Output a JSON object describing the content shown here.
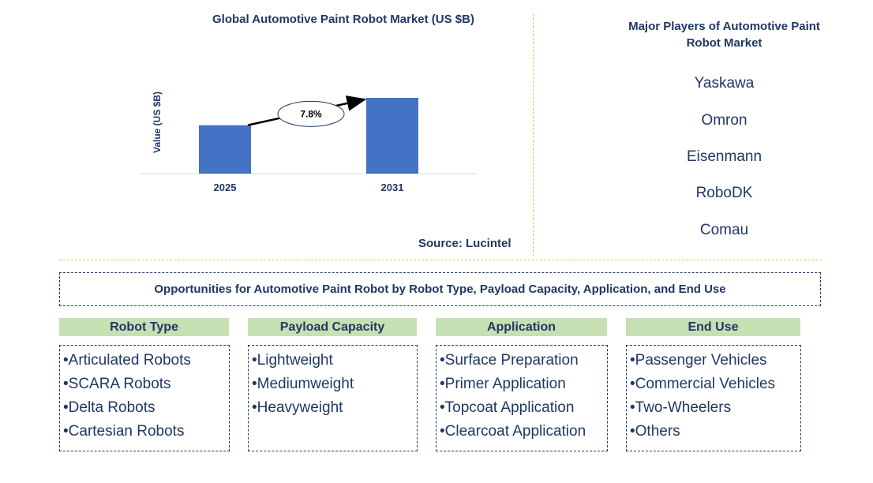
{
  "chart_data": {
    "type": "bar",
    "title": "Global Automotive Paint Robot Market (US $B)",
    "ylabel": "Value (US $B)",
    "categories": [
      "2025",
      "2031"
    ],
    "values": [
      6.2,
      9.7
    ],
    "cagr_label": "7.8%",
    "colors": {
      "bar": "#4472c4"
    },
    "grid": false
  },
  "source": "Source: Lucintel",
  "players": {
    "title": "Major Players of Automotive Paint Robot Market",
    "items": [
      "Yaskawa",
      "Omron",
      "Eisenmann",
      "RoboDK",
      "Comau"
    ]
  },
  "opportunities": {
    "title": "Opportunities for Automotive Paint Robot by Robot Type, Payload Capacity, Application, and End Use",
    "categories": [
      {
        "name": "Robot Type",
        "items": [
          "Articulated Robots",
          "SCARA Robots",
          "Delta Robots",
          "Cartesian Robots"
        ]
      },
      {
        "name": "Payload Capacity",
        "items": [
          "Lightweight",
          "Mediumweight",
          "Heavyweight"
        ]
      },
      {
        "name": "Application",
        "items": [
          "Surface Preparation",
          "Primer Application",
          "Topcoat Application",
          "Clearcoat Application"
        ]
      },
      {
        "name": "End Use",
        "items": [
          "Passenger Vehicles",
          "Commercial Vehicles",
          "Two-Wheelers",
          "Others"
        ]
      }
    ]
  },
  "colors": {
    "text": "#1f3864",
    "header_bg": "#c6e0b4",
    "divider": "#f0c14b"
  }
}
